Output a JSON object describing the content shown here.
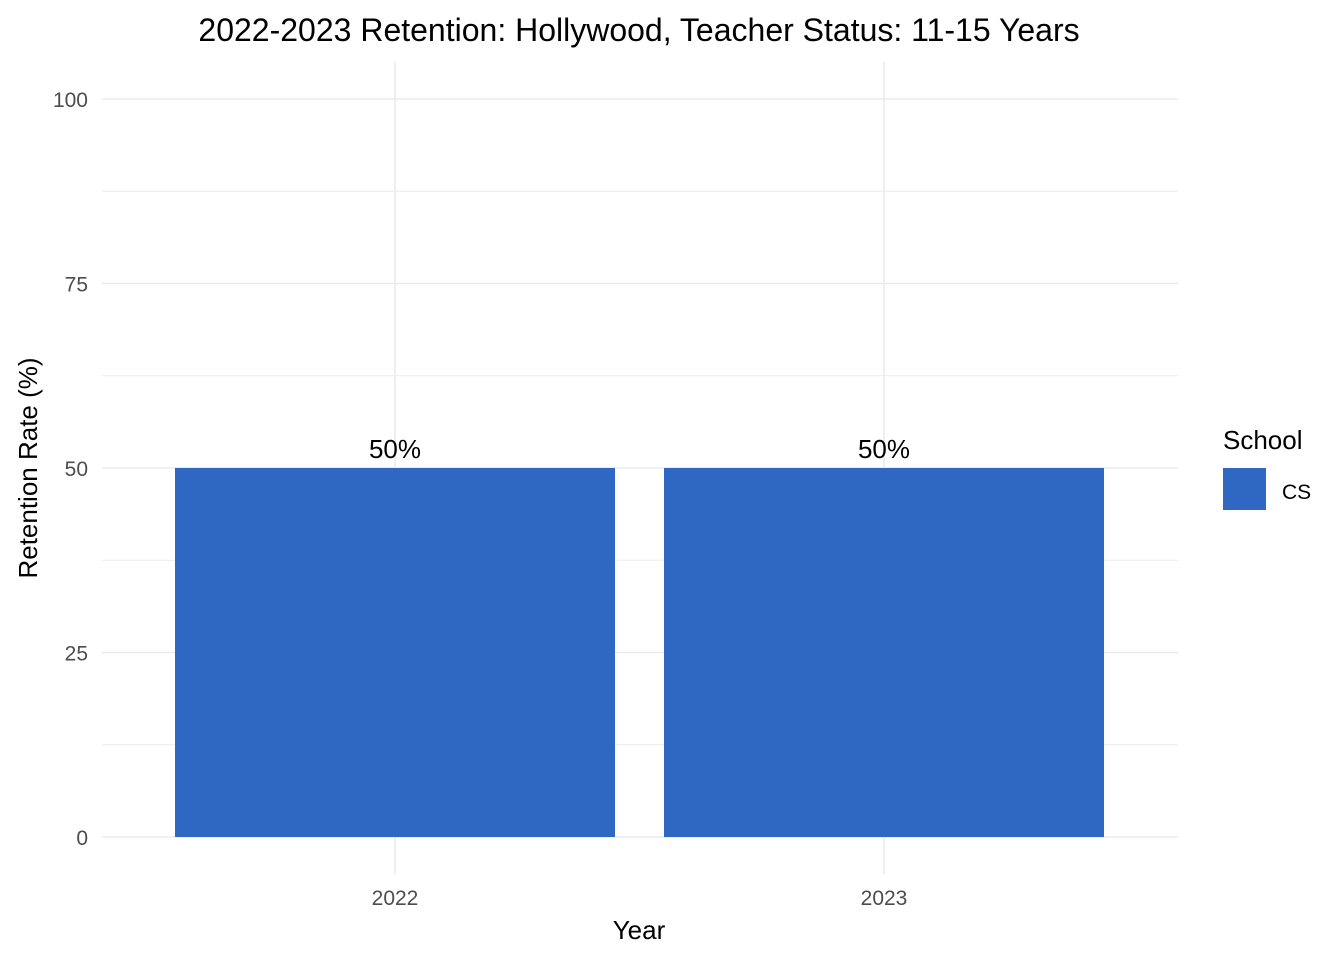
{
  "chart_data": {
    "type": "bar",
    "title": "2022-2023 Retention: Hollywood, Teacher Status: 11-15 Years",
    "xlabel": "Year",
    "ylabel": "Retention Rate (%)",
    "categories": [
      "2022",
      "2023"
    ],
    "series": [
      {
        "name": "CS",
        "values": [
          50,
          50
        ],
        "labels": [
          "50%",
          "50%"
        ],
        "color": "#2E68C3"
      }
    ],
    "ylim": [
      0,
      100
    ],
    "y_ticks": [
      0,
      25,
      50,
      75,
      100
    ],
    "y_tick_labels": [
      "0",
      "25",
      "50",
      "75",
      "100"
    ],
    "grid": true,
    "legend": {
      "title": "School",
      "position": "right"
    }
  }
}
